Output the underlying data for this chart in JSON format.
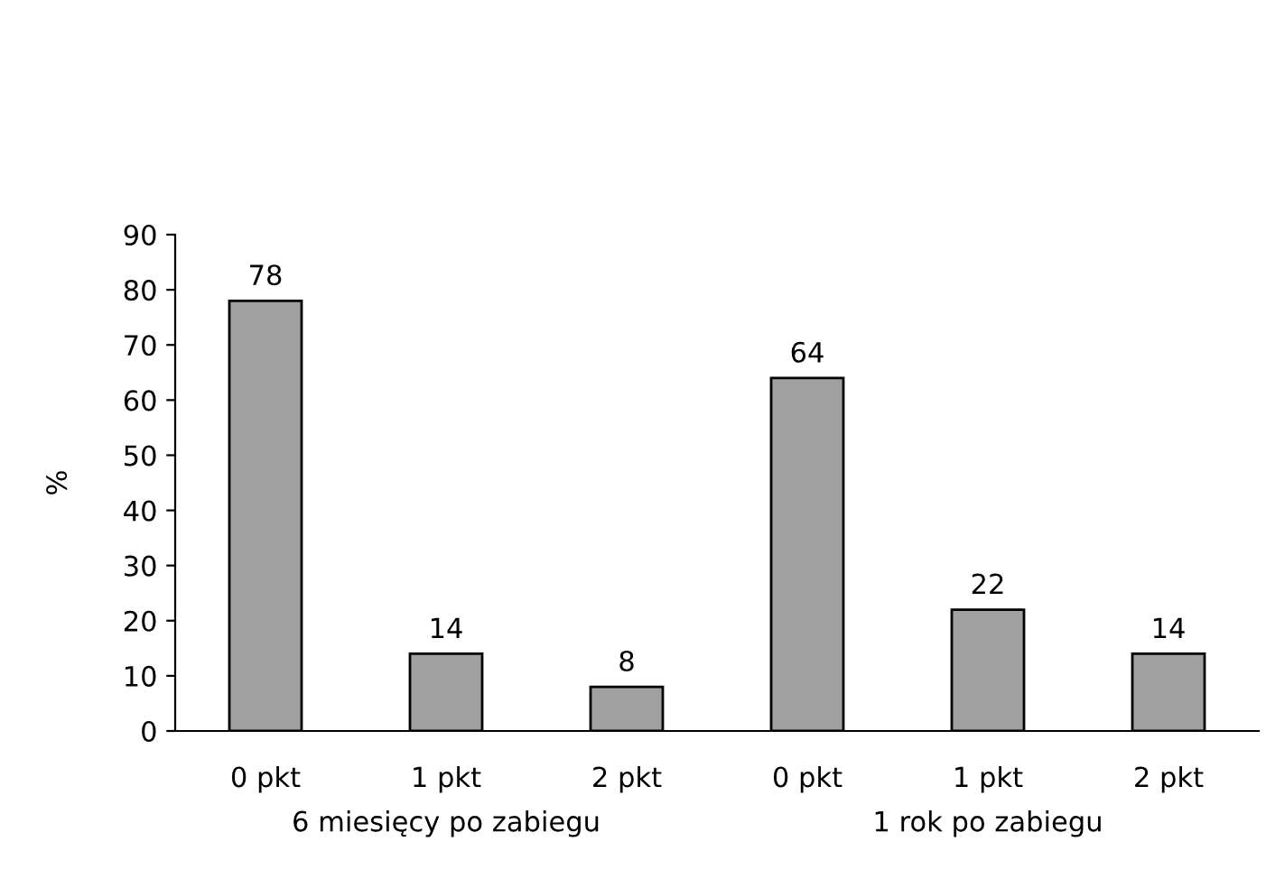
{
  "chart_data": {
    "type": "bar",
    "ylabel": "%",
    "categories": [
      "0 pkt",
      "1 pkt",
      "2 pkt",
      "0 pkt",
      "1 pkt",
      "2 pkt"
    ],
    "values": [
      78,
      14,
      8,
      64,
      22,
      14
    ],
    "color": "#a0a0a0",
    "ylim": [
      0,
      90
    ],
    "yticks": [
      0,
      10,
      20,
      30,
      40,
      50,
      60,
      70,
      80,
      90
    ],
    "data_labels": true,
    "annotations": [
      "6 miesięcy po zabiegu",
      "1 rok po zabiegu"
    ]
  }
}
